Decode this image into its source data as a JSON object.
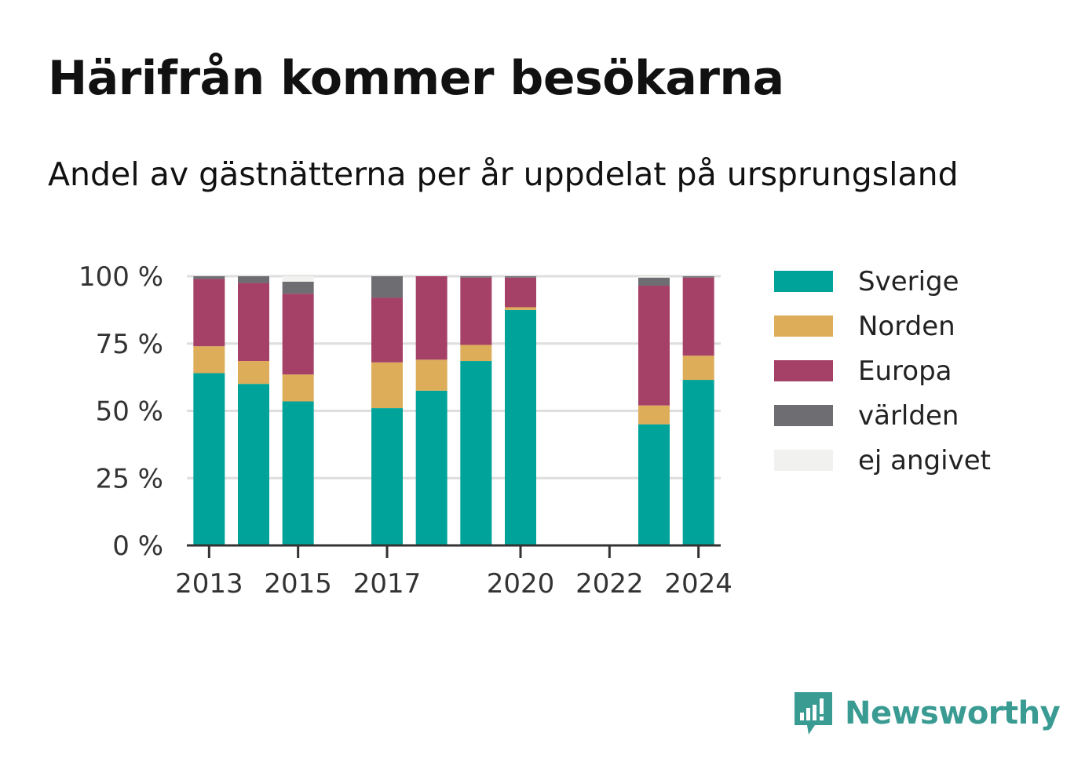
{
  "title": "Härifrån kommer besökarna",
  "subtitle": "Andel av gästnätterna per år uppdelat på ursprungsland",
  "brand": {
    "name": "Newsworthy",
    "icon": "newsworthy-logo-icon",
    "color": "#3a9b93"
  },
  "legend": [
    {
      "label": "Sverige",
      "color": "#00a39a"
    },
    {
      "label": "Norden",
      "color": "#ddad5a"
    },
    {
      "label": "Europa",
      "color": "#a54166"
    },
    {
      "label": "världen",
      "color": "#6e6d72"
    },
    {
      "label": "ej angivet",
      "color": "#f1f1ef"
    }
  ],
  "chart_data": {
    "type": "bar",
    "stacked": true,
    "x": [
      2013,
      2014,
      2015,
      2017,
      2018,
      2019,
      2020,
      2023,
      2024
    ],
    "xlim": [
      2012.5,
      2024.5
    ],
    "x_ticks": [
      2013,
      2015,
      2017,
      2020,
      2022,
      2024
    ],
    "y_ticks": [
      "0 %",
      "25 %",
      "50 %",
      "75 %",
      "100 %"
    ],
    "ylim": [
      0,
      100
    ],
    "grid": true,
    "legend_position": "right",
    "series": [
      {
        "name": "Sverige",
        "color": "#00a39a",
        "values": [
          64,
          60,
          53.5,
          51,
          57.5,
          68.5,
          87.5,
          45,
          61.5
        ]
      },
      {
        "name": "Norden",
        "color": "#ddad5a",
        "values": [
          10,
          8.5,
          10,
          17,
          11.5,
          6,
          1,
          7,
          9
        ]
      },
      {
        "name": "Europa",
        "color": "#a54166",
        "values": [
          25,
          29,
          30,
          24,
          31,
          25,
          11,
          44.5,
          29
        ]
      },
      {
        "name": "världen",
        "color": "#6e6d72",
        "values": [
          1,
          2.5,
          4.5,
          8,
          0,
          0.5,
          0.5,
          3,
          0.5
        ]
      },
      {
        "name": "ej angivet",
        "color": "#f1f1ef",
        "values": [
          0,
          0,
          2,
          0,
          0,
          0,
          0,
          0.5,
          0
        ]
      }
    ]
  }
}
